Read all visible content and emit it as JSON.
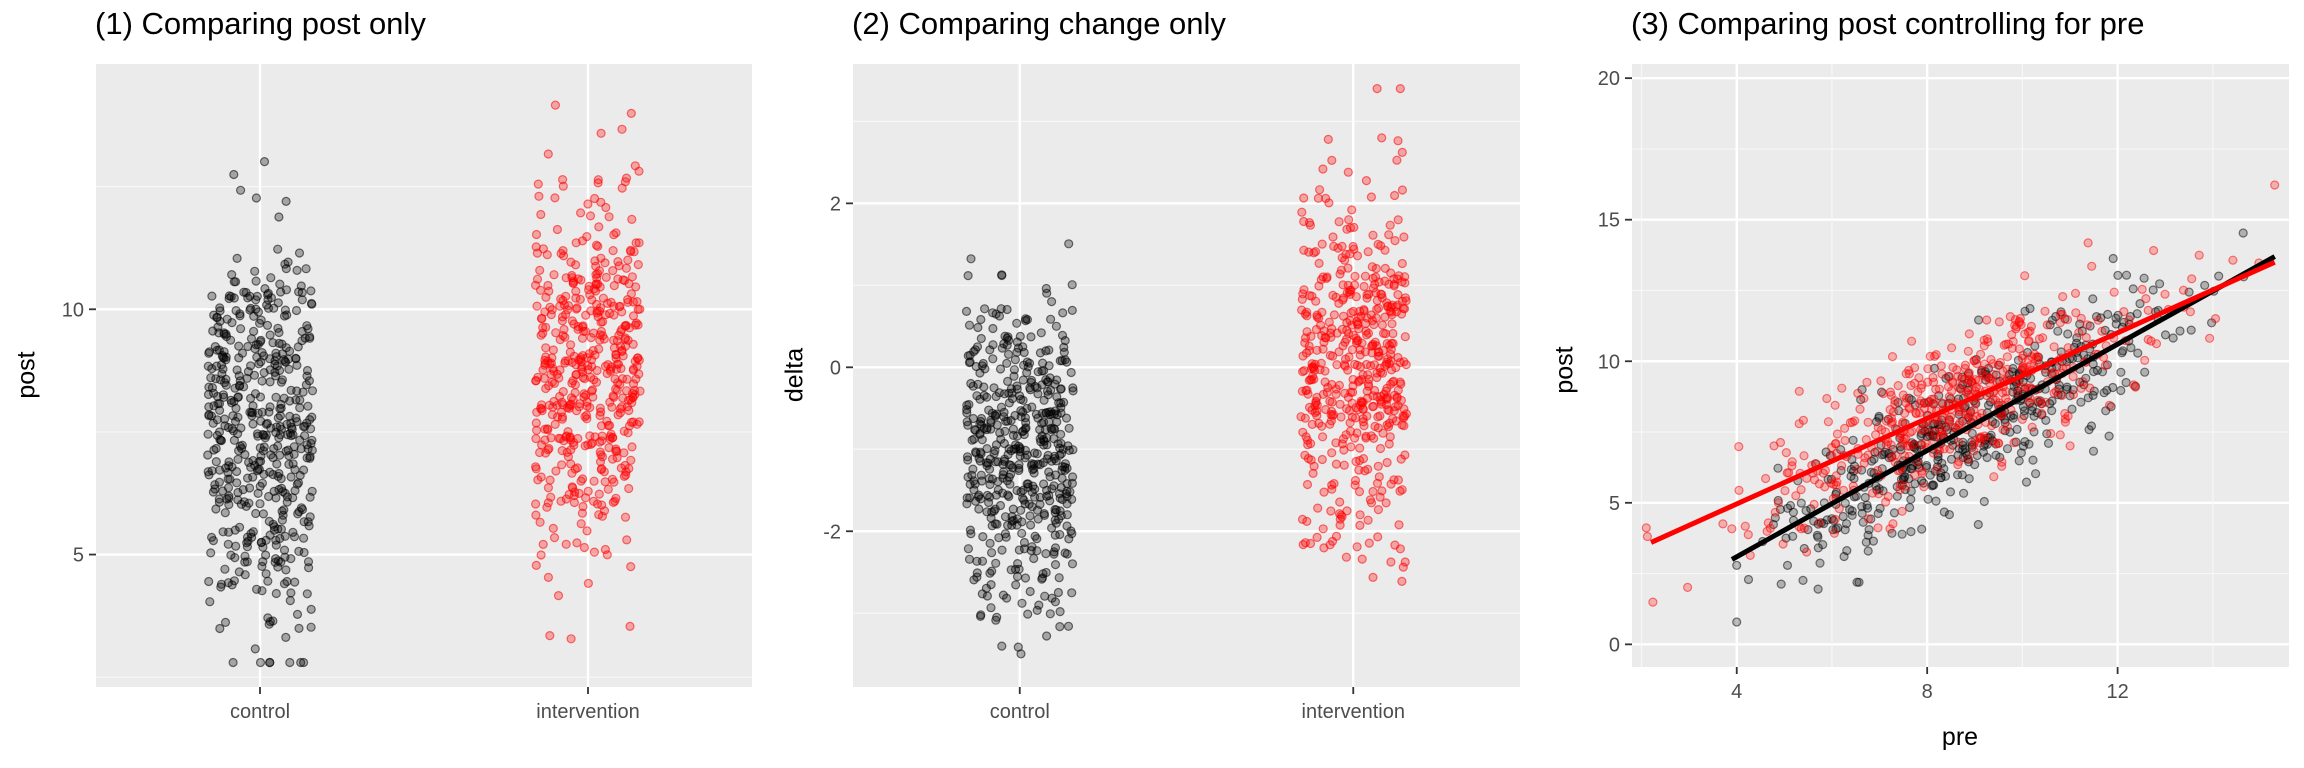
{
  "chart_data": [
    {
      "type": "scatter",
      "subtype": "jitter-strip",
      "title": "(1) Comparing post only",
      "xlabel": "",
      "ylabel": "post",
      "categories": [
        "control",
        "intervention"
      ],
      "ylim": [
        2.3,
        15.0
      ],
      "yticks": [
        5,
        10
      ],
      "grid": true,
      "legend": "none",
      "series": [
        {
          "category": "control",
          "color": "#000000",
          "n": 500,
          "mean": 7.6,
          "sd": 1.95,
          "min": 2.8,
          "max": 13.1
        },
        {
          "category": "intervention",
          "color": "#ff0000",
          "n": 500,
          "mean": 8.6,
          "sd": 1.85,
          "min": 3.2,
          "max": 14.3
        }
      ]
    },
    {
      "type": "scatter",
      "subtype": "jitter-strip",
      "title": "(2) Comparing change only",
      "xlabel": "",
      "ylabel": "delta",
      "categories": [
        "control",
        "intervention"
      ],
      "ylim": [
        -3.9,
        3.7
      ],
      "yticks": [
        -2,
        0,
        2
      ],
      "grid": true,
      "legend": "none",
      "series": [
        {
          "category": "control",
          "color": "#000000",
          "n": 500,
          "mean": -0.95,
          "sd": 1.0,
          "min": -3.6,
          "max": 2.2
        },
        {
          "category": "intervention",
          "color": "#ff0000",
          "n": 500,
          "mean": 0.0,
          "sd": 1.05,
          "min": -3.5,
          "max": 3.4
        }
      ]
    },
    {
      "type": "scatter",
      "title": "(3) Comparing post controlling for pre",
      "xlabel": "pre",
      "ylabel": "post",
      "xlim": [
        1.8,
        15.6
      ],
      "ylim": [
        -0.8,
        20.5
      ],
      "xticks": [
        4,
        8,
        12
      ],
      "yticks": [
        0,
        5,
        10,
        15,
        20
      ],
      "grid": true,
      "legend": "none",
      "series": [
        {
          "name": "control",
          "color": "#000000",
          "n": 500,
          "x_mean": 8.9,
          "x_sd": 2.0,
          "x_min": 4.0,
          "x_max": 15.3,
          "fit_line": {
            "x": [
              3.9,
              15.3
            ],
            "y": [
              3.0,
              13.7
            ]
          }
        },
        {
          "name": "intervention",
          "color": "#ff0000",
          "n": 500,
          "x_mean": 8.6,
          "x_sd": 2.1,
          "x_min": 2.1,
          "x_max": 15.3,
          "fit_line": {
            "x": [
              2.2,
              15.3
            ],
            "y": [
              3.6,
              13.5
            ]
          }
        }
      ]
    }
  ]
}
